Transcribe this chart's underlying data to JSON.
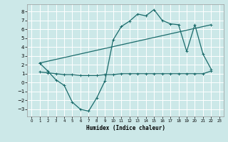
{
  "title": "",
  "xlabel": "Humidex (Indice chaleur)",
  "background_color": "#cce8e8",
  "grid_color": "#ffffff",
  "line_color": "#1a6b6b",
  "xlim": [
    -0.5,
    23.5
  ],
  "ylim": [
    -3.8,
    8.8
  ],
  "xticks": [
    0,
    1,
    2,
    3,
    4,
    5,
    6,
    7,
    8,
    9,
    10,
    11,
    12,
    13,
    14,
    15,
    16,
    17,
    18,
    19,
    20,
    21,
    22,
    23
  ],
  "yticks": [
    -3,
    -2,
    -1,
    0,
    1,
    2,
    3,
    4,
    5,
    6,
    7,
    8
  ],
  "series1_x": [
    1,
    2,
    3,
    4,
    5,
    6,
    7,
    8,
    9,
    10,
    11,
    12,
    13,
    14,
    15,
    16,
    17,
    18,
    19,
    20,
    21,
    22
  ],
  "series1_y": [
    2.2,
    1.3,
    0.3,
    -0.3,
    -2.2,
    -3.0,
    -3.2,
    -1.7,
    0.2,
    4.8,
    6.3,
    6.9,
    7.7,
    7.5,
    8.2,
    7.0,
    6.6,
    6.5,
    3.5,
    6.5,
    3.2,
    1.5
  ],
  "series2_x": [
    1,
    2,
    3,
    4,
    5,
    6,
    7,
    8,
    9,
    10,
    11,
    12,
    13,
    14,
    15,
    16,
    17,
    18,
    19,
    20,
    21,
    22
  ],
  "series2_y": [
    1.2,
    1.1,
    1.0,
    0.9,
    0.9,
    0.8,
    0.8,
    0.8,
    0.9,
    0.9,
    1.0,
    1.0,
    1.0,
    1.0,
    1.0,
    1.0,
    1.0,
    1.0,
    1.0,
    1.0,
    1.0,
    1.3
  ],
  "series3_x": [
    1,
    22
  ],
  "series3_y": [
    2.2,
    6.5
  ]
}
